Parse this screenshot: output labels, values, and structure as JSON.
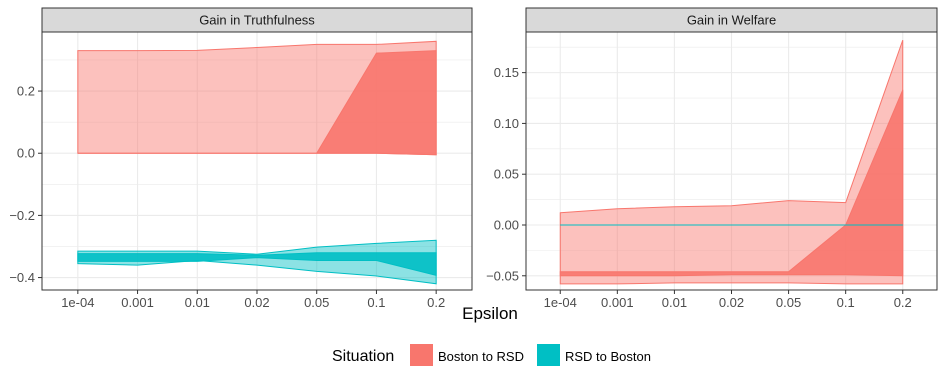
{
  "colors": {
    "boston_to_rsd": "#F8766D",
    "rsd_to_boston": "#00BFC4",
    "strip_bg": "#D9D9D9",
    "grid": "#EBEBEB",
    "panel_border": "#333333",
    "axis_text": "#4D4D4D"
  },
  "chart_data": [
    {
      "type": "area",
      "title": "Gain in Truthfulness",
      "xlabel": "Epsilon",
      "ylabel": "",
      "categories": [
        "1e-04",
        "0.001",
        "0.01",
        "0.02",
        "0.05",
        "0.1",
        "0.2"
      ],
      "ylim": [
        -0.44,
        0.39
      ],
      "yticks": [
        -0.4,
        -0.2,
        0.0,
        0.2
      ],
      "ytick_labels": [
        "−0.4",
        "−0.2",
        "0.0",
        "0.2"
      ],
      "grid": true,
      "series": [
        {
          "name": "Boston to RSD",
          "color_key": "boston_to_rsd",
          "outer_upper": [
            0.33,
            0.33,
            0.331,
            0.34,
            0.35,
            0.35,
            0.36
          ],
          "outer_lower": [
            0.0,
            0.0,
            0.0,
            0.0,
            0.0,
            0.0,
            -0.005
          ],
          "inner_upper": [
            0.0,
            0.0,
            0.0,
            0.0,
            0.0,
            0.322,
            0.33
          ],
          "inner_lower": [
            0.0,
            0.0,
            0.0,
            0.0,
            0.0,
            0.0,
            -0.005
          ]
        },
        {
          "name": "RSD to Boston",
          "color_key": "rsd_to_boston",
          "outer_upper": [
            -0.315,
            -0.315,
            -0.315,
            -0.325,
            -0.302,
            -0.29,
            -0.28
          ],
          "outer_lower": [
            -0.355,
            -0.36,
            -0.345,
            -0.36,
            -0.38,
            -0.395,
            -0.42
          ],
          "inner_upper": [
            -0.323,
            -0.323,
            -0.323,
            -0.328,
            -0.32,
            -0.32,
            -0.32
          ],
          "inner_lower": [
            -0.348,
            -0.348,
            -0.348,
            -0.336,
            -0.345,
            -0.345,
            -0.393
          ]
        }
      ]
    },
    {
      "type": "area",
      "title": "Gain in Welfare",
      "xlabel": "Epsilon",
      "ylabel": "",
      "categories": [
        "1e-04",
        "0.001",
        "0.01",
        "0.02",
        "0.05",
        "0.1",
        "0.2"
      ],
      "ylim": [
        -0.064,
        0.19
      ],
      "yticks": [
        -0.05,
        0.0,
        0.05,
        0.1,
        0.15
      ],
      "ytick_labels": [
        "−0.05",
        "0.00",
        "0.05",
        "0.10",
        "0.15"
      ],
      "grid": true,
      "series": [
        {
          "name": "Boston to RSD",
          "color_key": "boston_to_rsd",
          "outer_upper": [
            0.012,
            0.016,
            0.018,
            0.019,
            0.024,
            0.022,
            0.182
          ],
          "outer_lower": [
            -0.058,
            -0.058,
            -0.057,
            -0.057,
            -0.057,
            -0.058,
            -0.058
          ],
          "inner_upper": [
            -0.046,
            -0.046,
            -0.046,
            -0.046,
            -0.046,
            0.0,
            0.133
          ],
          "inner_lower": [
            -0.05,
            -0.05,
            -0.05,
            -0.049,
            -0.049,
            -0.049,
            -0.05
          ]
        },
        {
          "name": "RSD to Boston",
          "color_key": "rsd_to_boston",
          "outer_upper": [
            0.0,
            0.0,
            0.0,
            0.0,
            0.0,
            0.0,
            0.0
          ],
          "outer_lower": [
            0.0,
            0.0,
            0.0,
            0.0,
            0.0,
            0.0,
            0.0
          ],
          "inner_upper": [
            0.0,
            0.0,
            0.0,
            0.0,
            0.0,
            0.0,
            0.0
          ],
          "inner_lower": [
            0.0,
            0.0,
            0.0,
            0.0,
            0.0,
            0.0,
            0.0
          ]
        }
      ]
    }
  ],
  "legend": {
    "title": "Situation",
    "items": [
      {
        "label": "Boston to RSD",
        "color_key": "boston_to_rsd"
      },
      {
        "label": "RSD to Boston",
        "color_key": "rsd_to_boston"
      }
    ],
    "placement": "bottom"
  },
  "shared_xlabel": "Epsilon"
}
